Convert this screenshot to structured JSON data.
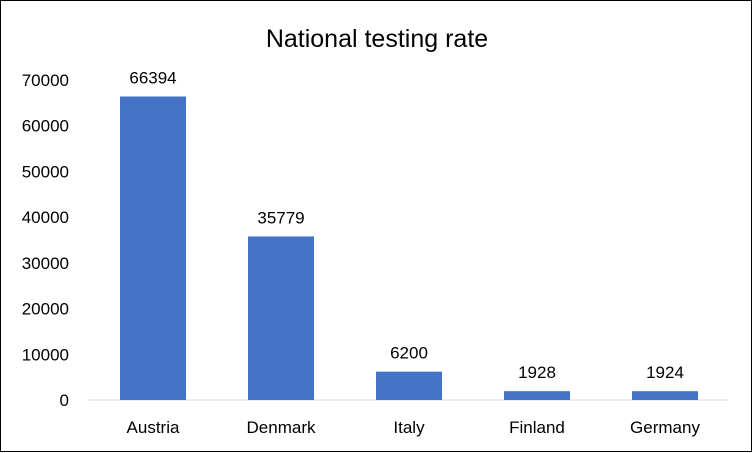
{
  "chart_data": {
    "type": "bar",
    "title": "National testing rate",
    "xlabel": "",
    "ylabel": "",
    "categories": [
      "Austria",
      "Denmark",
      "Italy",
      "Finland",
      "Germany"
    ],
    "values": [
      66394,
      35779,
      6200,
      1928,
      1924
    ],
    "data_labels": [
      "66394",
      "35779",
      "6200",
      "1928",
      "1924"
    ],
    "ylim": [
      0,
      70000
    ],
    "yticks": [
      "0",
      "10000",
      "20000",
      "30000",
      "40000",
      "50000",
      "60000",
      "70000"
    ],
    "bar_color": "#4472C4",
    "grid": false,
    "legend": "none"
  }
}
